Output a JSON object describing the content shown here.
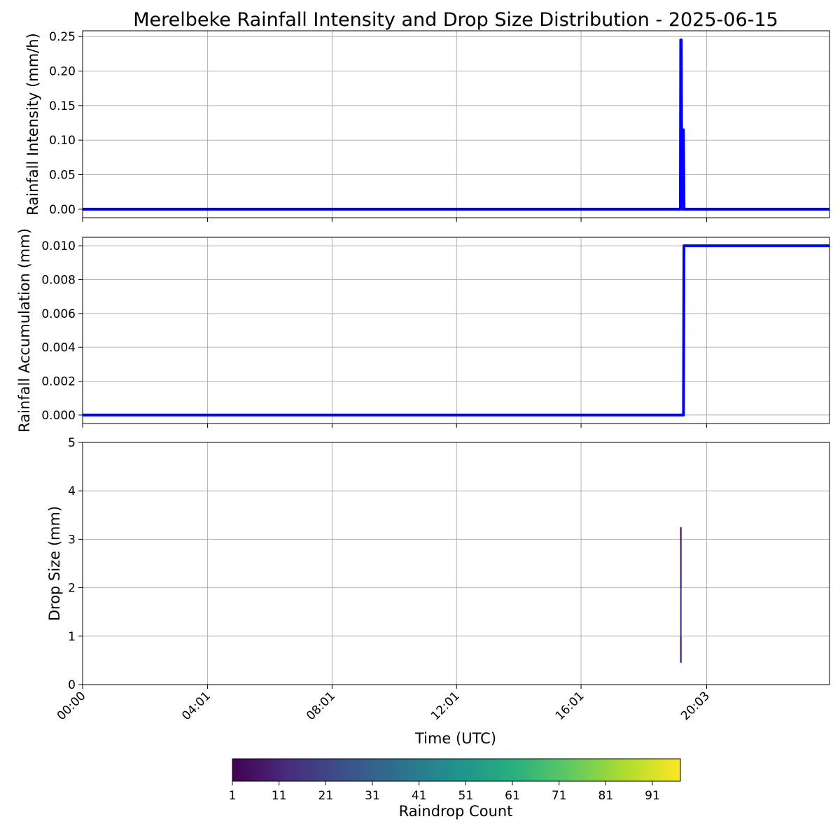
{
  "figure": {
    "title": "Merelbeke Rainfall Intensity and Drop Size Distribution - 2025-06-15"
  },
  "chart_data": [
    {
      "type": "line",
      "xlabel": "",
      "ylabel": "Rainfall Intensity (mm/h)",
      "xlim": [
        0,
        1440
      ],
      "ylim": [
        -0.0123,
        0.2583
      ],
      "yticks": [
        "0.00",
        "0.05",
        "0.10",
        "0.15",
        "0.20",
        "0.25"
      ],
      "ytick_values": [
        0,
        0.05,
        0.1,
        0.15,
        0.2,
        0.25
      ],
      "grid": true,
      "color": "#0000ff",
      "series": [
        {
          "x": [
            0,
            1152.5,
            1153.2,
            1154.2,
            1155.3,
            1156.5,
            1157.2,
            1158.4,
            1159.5,
            1440
          ],
          "y": [
            0,
            0,
            0.245,
            0.245,
            0.008,
            0,
            0.115,
            0.115,
            0,
            0
          ]
        }
      ]
    },
    {
      "type": "line",
      "xlabel": "",
      "ylabel": "Rainfall Accumulation (mm)",
      "xlim": [
        0,
        1440
      ],
      "ylim": [
        -0.0005,
        0.0105
      ],
      "yticks": [
        "0.000",
        "0.002",
        "0.004",
        "0.006",
        "0.008",
        "0.010"
      ],
      "ytick_values": [
        0,
        0.002,
        0.004,
        0.006,
        0.008,
        0.01
      ],
      "grid": true,
      "color": "#0000ff",
      "series": [
        {
          "x": [
            0,
            1158.5,
            1159.4,
            1440
          ],
          "y": [
            0,
            0,
            0.01,
            0.01
          ]
        }
      ]
    },
    {
      "type": "heatmap",
      "xlabel": "Time (UTC)",
      "ylabel": "Drop Size (mm)",
      "xlim": [
        0,
        1440
      ],
      "ylim": [
        0,
        5
      ],
      "yticks": [
        "0",
        "1",
        "2",
        "3",
        "4",
        "5"
      ],
      "ytick_values": [
        0,
        1,
        2,
        3,
        4,
        5
      ],
      "xticks": [
        "00:00",
        "04:01",
        "08:01",
        "12:01",
        "16:01",
        "20:03"
      ],
      "xtick_values": [
        0,
        241,
        481,
        721,
        961,
        1203
      ],
      "grid": true,
      "cells": [
        {
          "x": 1153.5,
          "y0": 0.45,
          "y1": 1.0,
          "count": 4
        },
        {
          "x": 1153.5,
          "y0": 1.0,
          "y1": 2.0,
          "count": 12
        },
        {
          "x": 1153.5,
          "y0": 2.0,
          "y1": 3.0,
          "count": 5
        },
        {
          "x": 1153.5,
          "y0": 3.0,
          "y1": 3.25,
          "count": 1
        }
      ],
      "colorbar": {
        "label": "Raindrop Count",
        "min": 1,
        "max": 97,
        "colormap": "viridis",
        "ticks": [
          "1",
          "11",
          "21",
          "31",
          "41",
          "51",
          "61",
          "71",
          "81",
          "91"
        ],
        "tick_values": [
          1,
          11,
          21,
          31,
          41,
          51,
          61,
          71,
          81,
          91
        ]
      }
    }
  ]
}
